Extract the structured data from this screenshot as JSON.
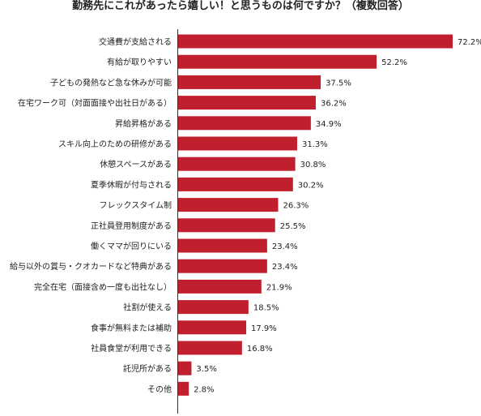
{
  "chart_data": {
    "type": "bar",
    "orientation": "horizontal",
    "title": "勤務先にこれがあったら嬉しい！と思うものは何ですか？（複数回答）",
    "categories": [
      "交通費が支給される",
      "有給が取りやすい",
      "子どもの発熱など急な休みが可能",
      "在宅ワーク可（対面面接や出社日がある）",
      "昇給昇格がある",
      "スキル向上のための研修がある",
      "休憩スペースがある",
      "夏季休暇が付与される",
      "フレックスタイム制",
      "正社員登用制度がある",
      "働くママが回りにいる",
      "給与以外の賞与・クオカードなど特典がある",
      "完全在宅（面接含め一度も出社なし）",
      "社割が使える",
      "食事が無料または補助",
      "社員食堂が利用できる",
      "託児所がある",
      "その他"
    ],
    "values": [
      72.2,
      52.2,
      37.5,
      36.2,
      34.9,
      31.3,
      30.8,
      30.2,
      26.3,
      25.5,
      23.4,
      23.4,
      21.9,
      18.5,
      17.9,
      16.8,
      3.5,
      2.8
    ],
    "value_labels": [
      "72.2%",
      "52.2%",
      "37.5%",
      "36.2%",
      "34.9%",
      "31.3%",
      "30.8%",
      "30.2%",
      "26.3%",
      "25.5%",
      "23.4%",
      "23.4%",
      "21.9%",
      "18.5%",
      "17.9%",
      "16.8%",
      "3.5%",
      "2.8%"
    ],
    "xlim": [
      0,
      80
    ],
    "bar_color": "#c0202e",
    "grid": false,
    "legend": "none"
  }
}
